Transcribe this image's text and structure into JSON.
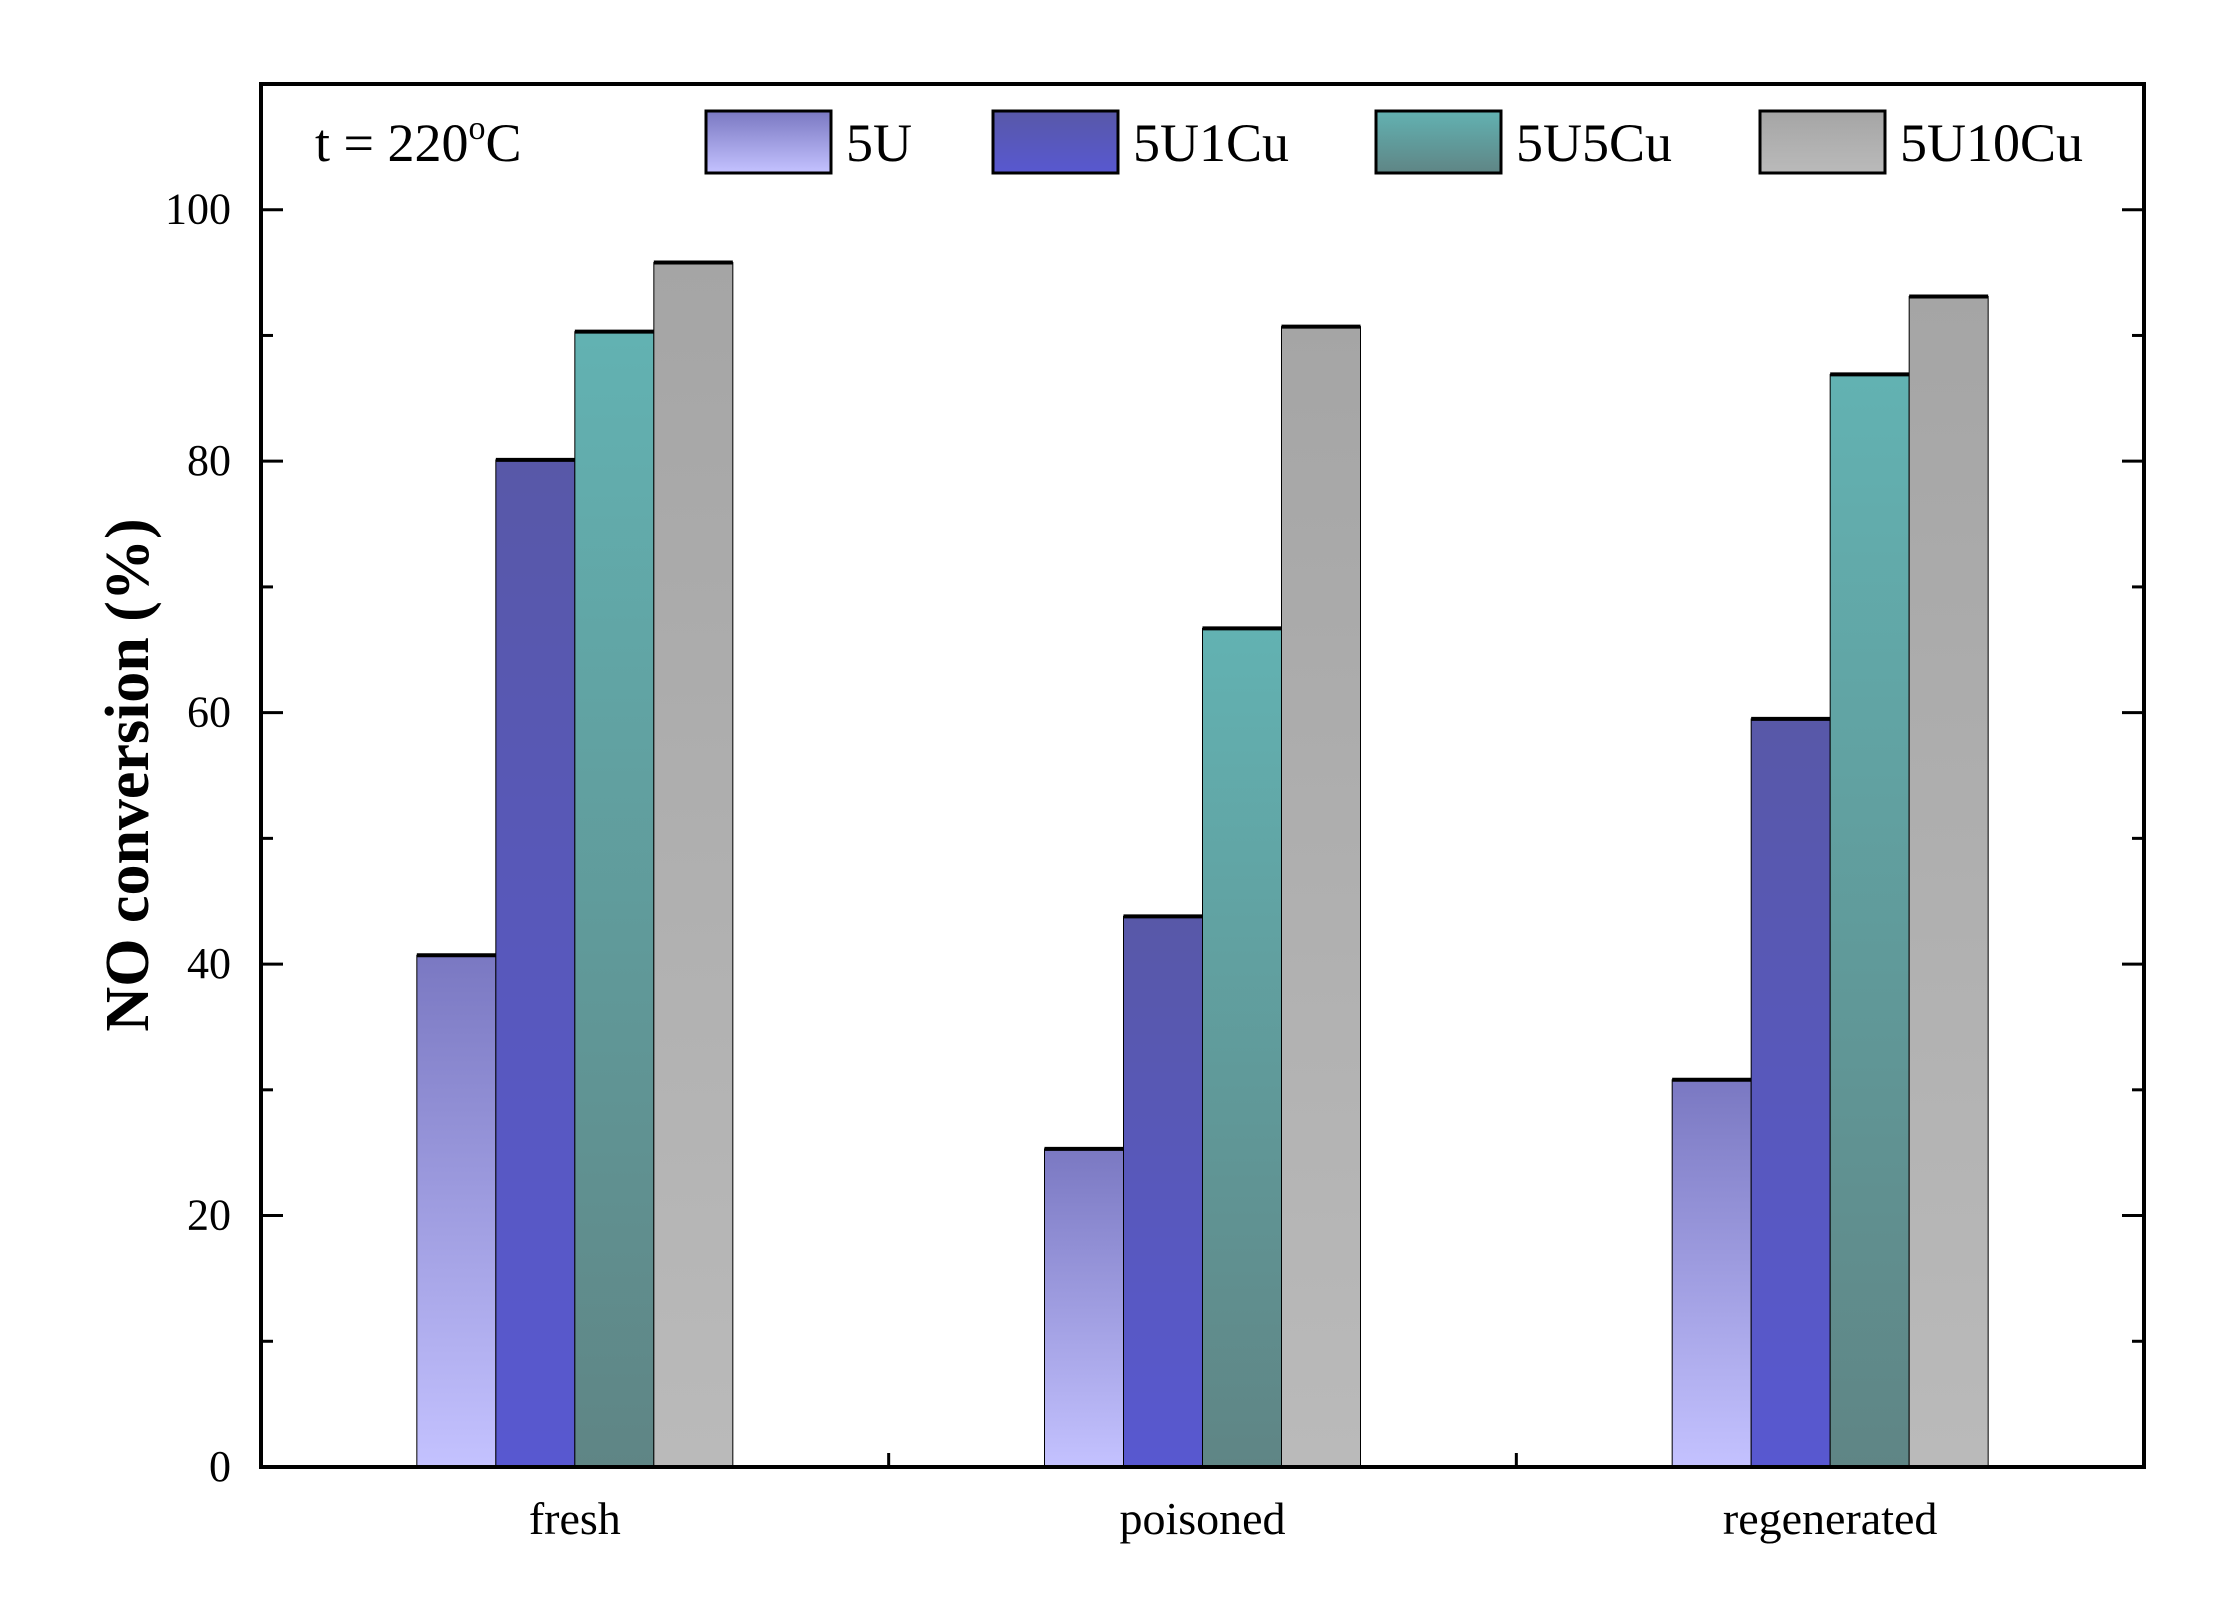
{
  "chart_data": {
    "type": "bar",
    "annotation": "t = 220",
    "annotation_sup": "o",
    "annotation_unit": "C",
    "ylabel": "NO conversion (%)",
    "xlabel": "",
    "ylim": [
      0,
      110
    ],
    "yticks": [
      0,
      20,
      40,
      60,
      80,
      100
    ],
    "categories": [
      "fresh",
      "poisoned",
      "regenerated"
    ],
    "legend_position": "top",
    "series": [
      {
        "name": "5U",
        "values": [
          40.7,
          25.3,
          30.8
        ],
        "color_top": "#7a78c2",
        "color_bottom": "#c4c2ff"
      },
      {
        "name": "5U1Cu",
        "values": [
          80.1,
          43.8,
          59.5
        ],
        "color_top": "#5858a8",
        "color_bottom": "#5858d0"
      },
      {
        "name": "5U5Cu",
        "values": [
          90.3,
          66.7,
          86.9
        ],
        "color_top": "#62b2b2",
        "color_bottom": "#5f8585"
      },
      {
        "name": "5U10Cu",
        "values": [
          95.8,
          90.7,
          93.1
        ],
        "color_top": "#a5a5a5",
        "color_bottom": "#bababa"
      }
    ]
  }
}
